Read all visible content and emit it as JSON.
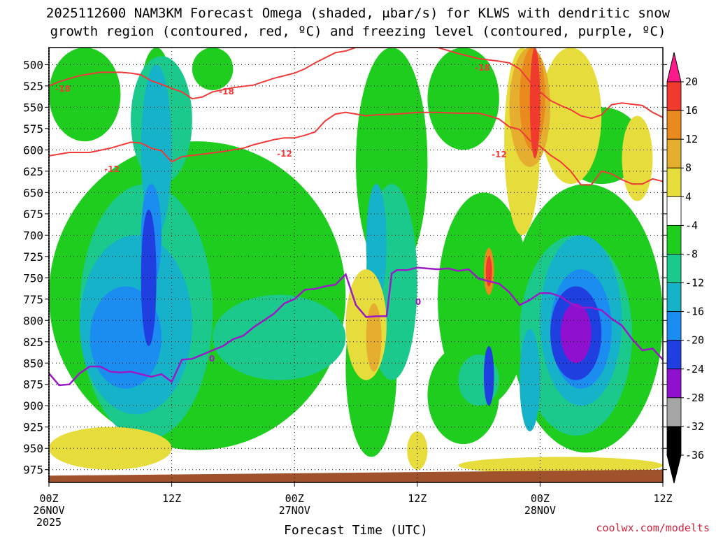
{
  "chart_data": {
    "type": "time-height contour",
    "title_line1": "2025112600 NAM3KM Forecast Omega (shaded, μbar/s) for KLWS with dendritic snow",
    "title_line2": "growth region (contoured, red, ºC) and freezing level (contoured, purple, ºC)",
    "xlabel": "Forecast Time (UTC)",
    "credit": "coolwx.com/modelts",
    "x_range_hours": [
      0,
      60
    ],
    "y_range_hpa": [
      480,
      990
    ],
    "y_ticks": [
      500,
      525,
      550,
      575,
      600,
      625,
      650,
      675,
      700,
      725,
      750,
      775,
      800,
      825,
      850,
      875,
      900,
      925,
      950,
      975
    ],
    "x_ticks": [
      {
        "hour": 0,
        "label": "00Z",
        "date": "26NOV",
        "year": "2025"
      },
      {
        "hour": 12,
        "label": "12Z",
        "date": "",
        "year": ""
      },
      {
        "hour": 24,
        "label": "00Z",
        "date": "27NOV",
        "year": ""
      },
      {
        "hour": 36,
        "label": "12Z",
        "date": "",
        "year": ""
      },
      {
        "hour": 48,
        "label": "00Z",
        "date": "28NOV",
        "year": ""
      },
      {
        "hour": 60,
        "label": "12Z",
        "date": "",
        "year": ""
      }
    ],
    "colorbar": {
      "labels": [
        "20",
        "16",
        "12",
        "8",
        "4",
        "-4",
        "-8",
        "-12",
        "-16",
        "-20",
        "-24",
        "-28",
        "-32",
        "-36"
      ],
      "colors": [
        "#ff1a8c",
        "#f03a2e",
        "#ea8a1e",
        "#e6ae2e",
        "#e6dc3c",
        "#ffffff",
        "#1ecd1e",
        "#1cc98c",
        "#16b2c9",
        "#1b8cf0",
        "#1f3fe0",
        "#8f10cf",
        "#a5a5a5",
        "#000000"
      ]
    },
    "contour_labels": {
      "dgz_upper": "-18",
      "dgz_lower": "-12",
      "freezing": "0"
    },
    "dgz_minus18_line": [
      [
        0,
        525
      ],
      [
        1,
        520
      ],
      [
        3,
        513
      ],
      [
        5,
        509
      ],
      [
        7,
        509
      ],
      [
        8,
        510
      ],
      [
        9,
        512
      ],
      [
        10,
        519
      ],
      [
        11,
        523
      ],
      [
        12,
        528
      ],
      [
        13,
        532
      ],
      [
        14,
        540
      ],
      [
        15,
        538
      ],
      [
        16,
        532
      ],
      [
        18,
        527
      ],
      [
        20,
        524
      ],
      [
        22,
        516
      ],
      [
        24,
        510
      ],
      [
        25,
        505
      ],
      [
        26,
        498
      ],
      [
        27,
        492
      ],
      [
        28,
        486
      ],
      [
        29,
        484
      ],
      [
        30,
        480
      ],
      [
        38,
        480
      ],
      [
        40,
        487
      ],
      [
        42,
        493
      ],
      [
        44,
        496
      ],
      [
        45,
        498
      ],
      [
        46,
        505
      ],
      [
        47,
        520
      ],
      [
        48,
        532
      ],
      [
        49,
        542
      ],
      [
        50,
        548
      ],
      [
        51,
        553
      ],
      [
        52,
        560
      ],
      [
        53,
        563
      ],
      [
        54,
        559
      ],
      [
        55,
        547
      ],
      [
        56,
        545
      ],
      [
        58,
        548
      ],
      [
        59,
        556
      ],
      [
        60,
        562
      ]
    ],
    "dgz_minus12_line": [
      [
        0,
        607
      ],
      [
        2,
        603
      ],
      [
        4,
        603
      ],
      [
        6,
        598
      ],
      [
        8,
        591
      ],
      [
        9,
        592
      ],
      [
        10,
        598
      ],
      [
        11,
        601
      ],
      [
        12,
        614
      ],
      [
        13,
        608
      ],
      [
        15,
        605
      ],
      [
        17,
        602
      ],
      [
        19,
        598
      ],
      [
        20,
        594
      ],
      [
        21,
        591
      ],
      [
        22,
        588
      ],
      [
        23,
        586
      ],
      [
        24,
        586
      ],
      [
        25,
        583
      ],
      [
        26,
        579
      ],
      [
        27,
        566
      ],
      [
        28,
        558
      ],
      [
        29,
        556
      ],
      [
        30,
        558
      ],
      [
        31,
        560
      ],
      [
        32,
        559
      ],
      [
        34,
        558
      ],
      [
        36,
        556
      ],
      [
        38,
        556
      ],
      [
        40,
        557
      ],
      [
        42,
        557
      ],
      [
        43,
        560
      ],
      [
        44,
        564
      ],
      [
        45,
        573
      ],
      [
        46,
        576
      ],
      [
        47,
        589
      ],
      [
        48,
        596
      ],
      [
        49,
        606
      ],
      [
        50,
        614
      ],
      [
        51,
        625
      ],
      [
        52,
        641
      ],
      [
        53,
        641
      ],
      [
        54,
        625
      ],
      [
        55,
        628
      ],
      [
        56,
        635
      ],
      [
        57,
        640
      ],
      [
        58,
        640
      ],
      [
        59,
        634
      ],
      [
        60,
        637
      ]
    ],
    "freezing_line": [
      [
        0,
        862
      ],
      [
        1,
        876
      ],
      [
        2,
        875
      ],
      [
        3,
        862
      ],
      [
        4,
        854
      ],
      [
        5,
        854
      ],
      [
        6,
        860
      ],
      [
        7,
        861
      ],
      [
        8,
        860
      ],
      [
        9,
        863
      ],
      [
        10,
        866
      ],
      [
        11,
        863
      ],
      [
        12,
        872
      ],
      [
        13,
        846
      ],
      [
        14,
        845
      ],
      [
        16,
        835
      ],
      [
        17,
        830
      ],
      [
        18,
        822
      ],
      [
        19,
        818
      ],
      [
        20,
        808
      ],
      [
        21,
        800
      ],
      [
        22,
        792
      ],
      [
        23,
        780
      ],
      [
        24,
        775
      ],
      [
        25,
        764
      ],
      [
        26,
        763
      ],
      [
        27,
        760
      ],
      [
        28,
        758
      ],
      [
        29,
        746
      ],
      [
        30,
        782
      ],
      [
        31,
        796
      ],
      [
        32,
        795
      ],
      [
        33,
        795
      ],
      [
        33.5,
        745
      ],
      [
        34,
        741
      ],
      [
        35,
        741
      ],
      [
        36,
        738
      ],
      [
        38,
        740
      ],
      [
        39,
        739
      ],
      [
        40,
        742
      ],
      [
        41,
        740
      ],
      [
        42,
        751
      ],
      [
        43,
        754
      ],
      [
        44,
        757
      ],
      [
        45,
        767
      ],
      [
        46,
        782
      ],
      [
        47,
        776
      ],
      [
        48,
        768
      ],
      [
        49,
        768
      ],
      [
        50,
        772
      ],
      [
        51,
        780
      ],
      [
        52,
        785
      ],
      [
        53,
        785
      ],
      [
        54,
        788
      ],
      [
        55,
        798
      ],
      [
        56,
        806
      ],
      [
        57,
        822
      ],
      [
        58,
        835
      ],
      [
        59,
        833
      ],
      [
        60,
        846
      ]
    ],
    "terrain_pressure_hpa": {
      "start": 982,
      "end": 975
    },
    "omega_regions": [
      {
        "level": "-8",
        "color": "#1ecd1e",
        "x": [
          0,
          29
        ],
        "p": [
          590,
          952
        ]
      },
      {
        "level": "-8",
        "color": "#1ecd1e",
        "x": [
          0,
          7
        ],
        "p": [
          480,
          590
        ]
      },
      {
        "level": "-8",
        "color": "#1ecd1e",
        "x": [
          9,
          12
        ],
        "p": [
          480,
          590
        ]
      },
      {
        "level": "-8",
        "color": "#1ecd1e",
        "x": [
          14,
          18
        ],
        "p": [
          480,
          530
        ]
      },
      {
        "level": "-8",
        "color": "#1ecd1e",
        "x": [
          30,
          37
        ],
        "p": [
          480,
          750
        ]
      },
      {
        "level": "-8",
        "color": "#1ecd1e",
        "x": [
          37,
          44
        ],
        "p": [
          480,
          600
        ]
      },
      {
        "level": "-8",
        "color": "#1ecd1e",
        "x": [
          29,
          34
        ],
        "p": [
          750,
          960
        ]
      },
      {
        "level": "-8",
        "color": "#1ecd1e",
        "x": [
          38,
          47
        ],
        "p": [
          650,
          900
        ]
      },
      {
        "level": "-8",
        "color": "#1ecd1e",
        "x": [
          37,
          44
        ],
        "p": [
          830,
          945
        ]
      },
      {
        "level": "-8",
        "color": "#1ecd1e",
        "x": [
          45,
          60
        ],
        "p": [
          640,
          955
        ]
      },
      {
        "level": "-8",
        "color": "#1ecd1e",
        "x": [
          50,
          58
        ],
        "p": [
          550,
          640
        ]
      },
      {
        "level": "-12",
        "color": "#1cc98c",
        "x": [
          3,
          16
        ],
        "p": [
          640,
          940
        ]
      },
      {
        "level": "-12",
        "color": "#1cc98c",
        "x": [
          8,
          14
        ],
        "p": [
          490,
          640
        ]
      },
      {
        "level": "-12",
        "color": "#1cc98c",
        "x": [
          16,
          29
        ],
        "p": [
          770,
          870
        ]
      },
      {
        "level": "-12",
        "color": "#1cc98c",
        "x": [
          31,
          36
        ],
        "p": [
          640,
          870
        ]
      },
      {
        "level": "-12",
        "color": "#1cc98c",
        "x": [
          40,
          44
        ],
        "p": [
          840,
          900
        ]
      },
      {
        "level": "-12",
        "color": "#1cc98c",
        "x": [
          46,
          57
        ],
        "p": [
          700,
          935
        ]
      },
      {
        "level": "-16",
        "color": "#16b2c9",
        "x": [
          3,
          14
        ],
        "p": [
          700,
          910
        ]
      },
      {
        "level": "-16",
        "color": "#16b2c9",
        "x": [
          9,
          12
        ],
        "p": [
          500,
          700
        ]
      },
      {
        "level": "-16",
        "color": "#16b2c9",
        "x": [
          31,
          33
        ],
        "p": [
          640,
          780
        ]
      },
      {
        "level": "-16",
        "color": "#16b2c9",
        "x": [
          46,
          48
        ],
        "p": [
          810,
          930
        ]
      },
      {
        "level": "-16",
        "color": "#16b2c9",
        "x": [
          48,
          56
        ],
        "p": [
          700,
          900
        ]
      },
      {
        "level": "-20",
        "color": "#1b8cf0",
        "x": [
          4,
          11
        ],
        "p": [
          760,
          880
        ]
      },
      {
        "level": "-20",
        "color": "#1b8cf0",
        "x": [
          9,
          11
        ],
        "p": [
          640,
          760
        ]
      },
      {
        "level": "-20",
        "color": "#1b8cf0",
        "x": [
          49,
          55
        ],
        "p": [
          740,
          880
        ]
      },
      {
        "level": "-24",
        "color": "#1f3fe0",
        "x": [
          9,
          10.5
        ],
        "p": [
          670,
          830
        ]
      },
      {
        "level": "-24",
        "color": "#1f3fe0",
        "x": [
          49,
          54
        ],
        "p": [
          760,
          870
        ]
      },
      {
        "level": "-24",
        "color": "#1f3fe0",
        "x": [
          42.5,
          43.5
        ],
        "p": [
          830,
          900
        ]
      },
      {
        "level": "-28",
        "color": "#8f10cf",
        "x": [
          50,
          53
        ],
        "p": [
          780,
          850
        ]
      },
      {
        "level": "4",
        "color": "#e6dc3c",
        "x": [
          0,
          12
        ],
        "p": [
          925,
          975
        ]
      },
      {
        "level": "4",
        "color": "#e6dc3c",
        "x": [
          29,
          33
        ],
        "p": [
          740,
          870
        ]
      },
      {
        "level": "4",
        "color": "#e6dc3c",
        "x": [
          35,
          37
        ],
        "p": [
          930,
          975
        ]
      },
      {
        "level": "4",
        "color": "#e6dc3c",
        "x": [
          40,
          60
        ],
        "p": [
          960,
          980
        ]
      },
      {
        "level": "4",
        "color": "#e6dc3c",
        "x": [
          44.5,
          48
        ],
        "p": [
          480,
          700
        ]
      },
      {
        "level": "4",
        "color": "#e6dc3c",
        "x": [
          48,
          54
        ],
        "p": [
          480,
          640
        ]
      },
      {
        "level": "4",
        "color": "#e6dc3c",
        "x": [
          56,
          59
        ],
        "p": [
          560,
          660
        ]
      },
      {
        "level": "8",
        "color": "#e6ae2e",
        "x": [
          31,
          32.5
        ],
        "p": [
          780,
          860
        ]
      },
      {
        "level": "8",
        "color": "#e6ae2e",
        "x": [
          45,
          49
        ],
        "p": [
          480,
          620
        ]
      },
      {
        "level": "12",
        "color": "#ea8a1e",
        "x": [
          46,
          48.5
        ],
        "p": [
          480,
          600
        ]
      },
      {
        "level": "12",
        "color": "#ea8a1e",
        "x": [
          42.5,
          43.5
        ],
        "p": [
          715,
          770
        ]
      },
      {
        "level": "16",
        "color": "#f03a2e",
        "x": [
          47,
          48
        ],
        "p": [
          480,
          610
        ]
      },
      {
        "level": "16",
        "color": "#f03a2e",
        "x": [
          42.7,
          43.3
        ],
        "p": [
          725,
          760
        ]
      }
    ]
  }
}
